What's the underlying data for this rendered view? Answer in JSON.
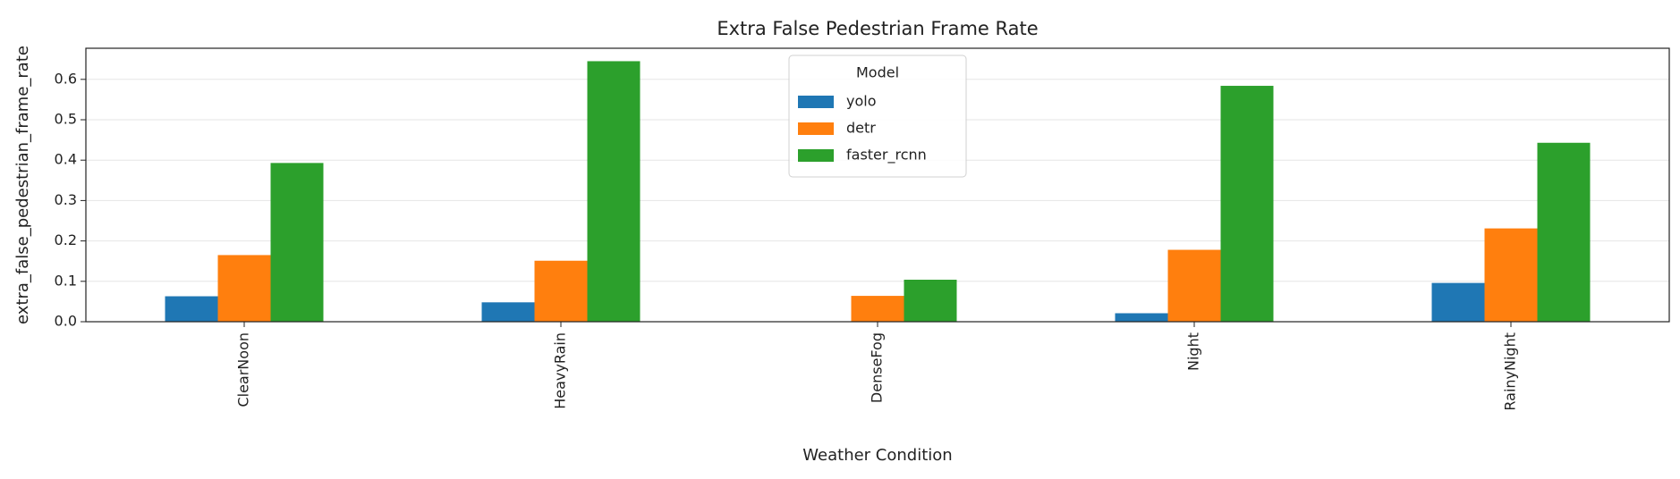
{
  "chart_data": {
    "type": "bar",
    "title": "Extra False Pedestrian Frame Rate",
    "x_label": "Weather Condition",
    "y_label": "extra_false_pedestrian_frame_rate",
    "categories": [
      "ClearNoon",
      "HeavyRain",
      "DenseFog",
      "Night",
      "RainyNight"
    ],
    "series": [
      {
        "name": "yolo",
        "color": "#1f77b4",
        "values": [
          0.063,
          0.048,
          0,
          0.021,
          0.096
        ]
      },
      {
        "name": "detr",
        "color": "#ff7f0e",
        "values": [
          0.165,
          0.151,
          0.064,
          0.178,
          0.231
        ]
      },
      {
        "name": "faster_rcnn",
        "color": "#2ca02c",
        "values": [
          0.393,
          0.645,
          0.104,
          0.584,
          0.443
        ]
      }
    ],
    "legend_title": "Model",
    "legend": "upper center",
    "ylim": [
      0,
      0.677
    ],
    "yticks": [
      {
        "value": 0,
        "label": "0.0"
      },
      {
        "value": 0.1,
        "label": "0.1"
      },
      {
        "value": 0.2,
        "label": "0.2"
      },
      {
        "value": 0.3,
        "label": "0.3"
      },
      {
        "value": 0.4,
        "label": "0.4"
      },
      {
        "value": 0.5,
        "label": "0.5"
      },
      {
        "value": 0.6,
        "label": "0.6"
      }
    ],
    "grid": true
  }
}
